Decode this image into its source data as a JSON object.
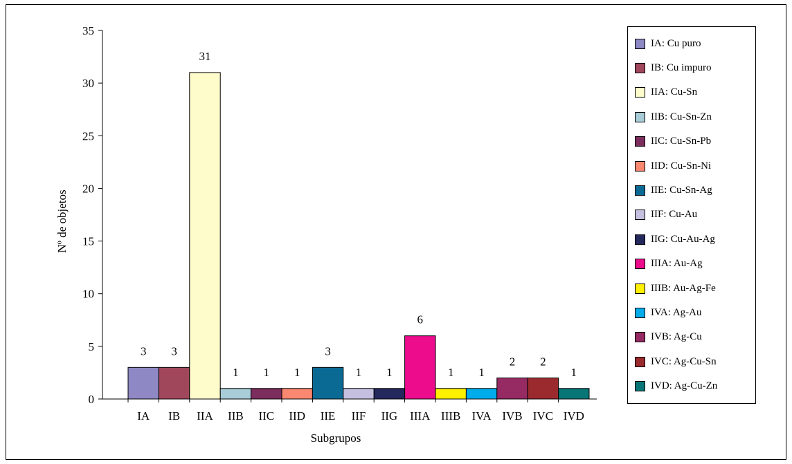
{
  "chart_data": {
    "type": "bar",
    "xlabel": "Subgrupos",
    "ylabel": "Nº de objetos",
    "ylim": [
      0,
      35
    ],
    "yticks": [
      0,
      5,
      10,
      15,
      20,
      25,
      30,
      35
    ],
    "grid": false,
    "legend_position": "right",
    "categories": [
      "IA",
      "IB",
      "IIA",
      "IIB",
      "IIC",
      "IID",
      "IIE",
      "IIF",
      "IIG",
      "IIIA",
      "IIIB",
      "IVA",
      "IVB",
      "IVC",
      "IVD"
    ],
    "values": [
      3,
      3,
      31,
      1,
      1,
      1,
      3,
      1,
      1,
      6,
      1,
      1,
      2,
      2,
      1
    ],
    "colors": [
      "#8E88C4",
      "#A0475C",
      "#FFFCCC",
      "#A8CCD8",
      "#7B2D5D",
      "#FA8870",
      "#0A6A94",
      "#C6C0E0",
      "#24285C",
      "#EC0C8C",
      "#FFF000",
      "#00ACEC",
      "#962A62",
      "#9A2A2E",
      "#087676"
    ],
    "legend": [
      "IA: Cu puro",
      "IB: Cu impuro",
      "IIA: Cu-Sn",
      "IIB: Cu-Sn-Zn",
      "IIC: Cu-Sn-Pb",
      "IID: Cu-Sn-Ni",
      "IIE: Cu-Sn-Ag",
      "IIF: Cu-Au",
      "IIG: Cu-Au-Ag",
      "IIIA: Au-Ag",
      "IIIB: Au-Ag-Fe",
      "IVA: Ag-Au",
      "IVB: Ag-Cu",
      "IVC: Ag-Cu-Sn",
      "IVD: Ag-Cu-Zn"
    ]
  }
}
